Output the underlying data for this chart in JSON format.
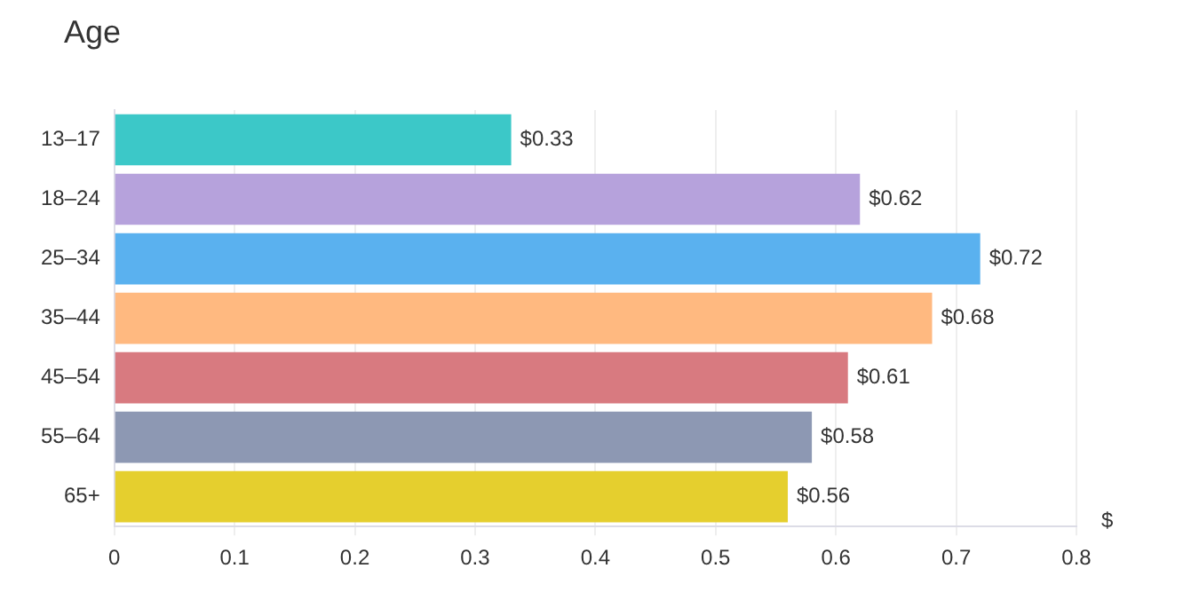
{
  "chart_data": {
    "type": "bar",
    "orientation": "horizontal",
    "title": "Age",
    "xlabel": "$",
    "categories": [
      "13–17",
      "18–24",
      "25–34",
      "35–44",
      "45–54",
      "55–64",
      "65+"
    ],
    "values": [
      0.33,
      0.62,
      0.72,
      0.68,
      0.61,
      0.58,
      0.56
    ],
    "colors": [
      "#3cc8c8",
      "#b6a2dc",
      "#5ab1ef",
      "#ffb980",
      "#d87a80",
      "#8d98b3",
      "#e5cf2e"
    ],
    "value_labels": [
      "$0.33",
      "$0.62",
      "$0.72",
      "$0.68",
      "$0.61",
      "$0.58",
      "$0.56"
    ],
    "xlim": [
      0,
      0.8
    ],
    "xticks": [
      0,
      0.1,
      0.2,
      0.3,
      0.4,
      0.5,
      0.6,
      0.7,
      0.8
    ],
    "grid": "x",
    "legend": false
  }
}
